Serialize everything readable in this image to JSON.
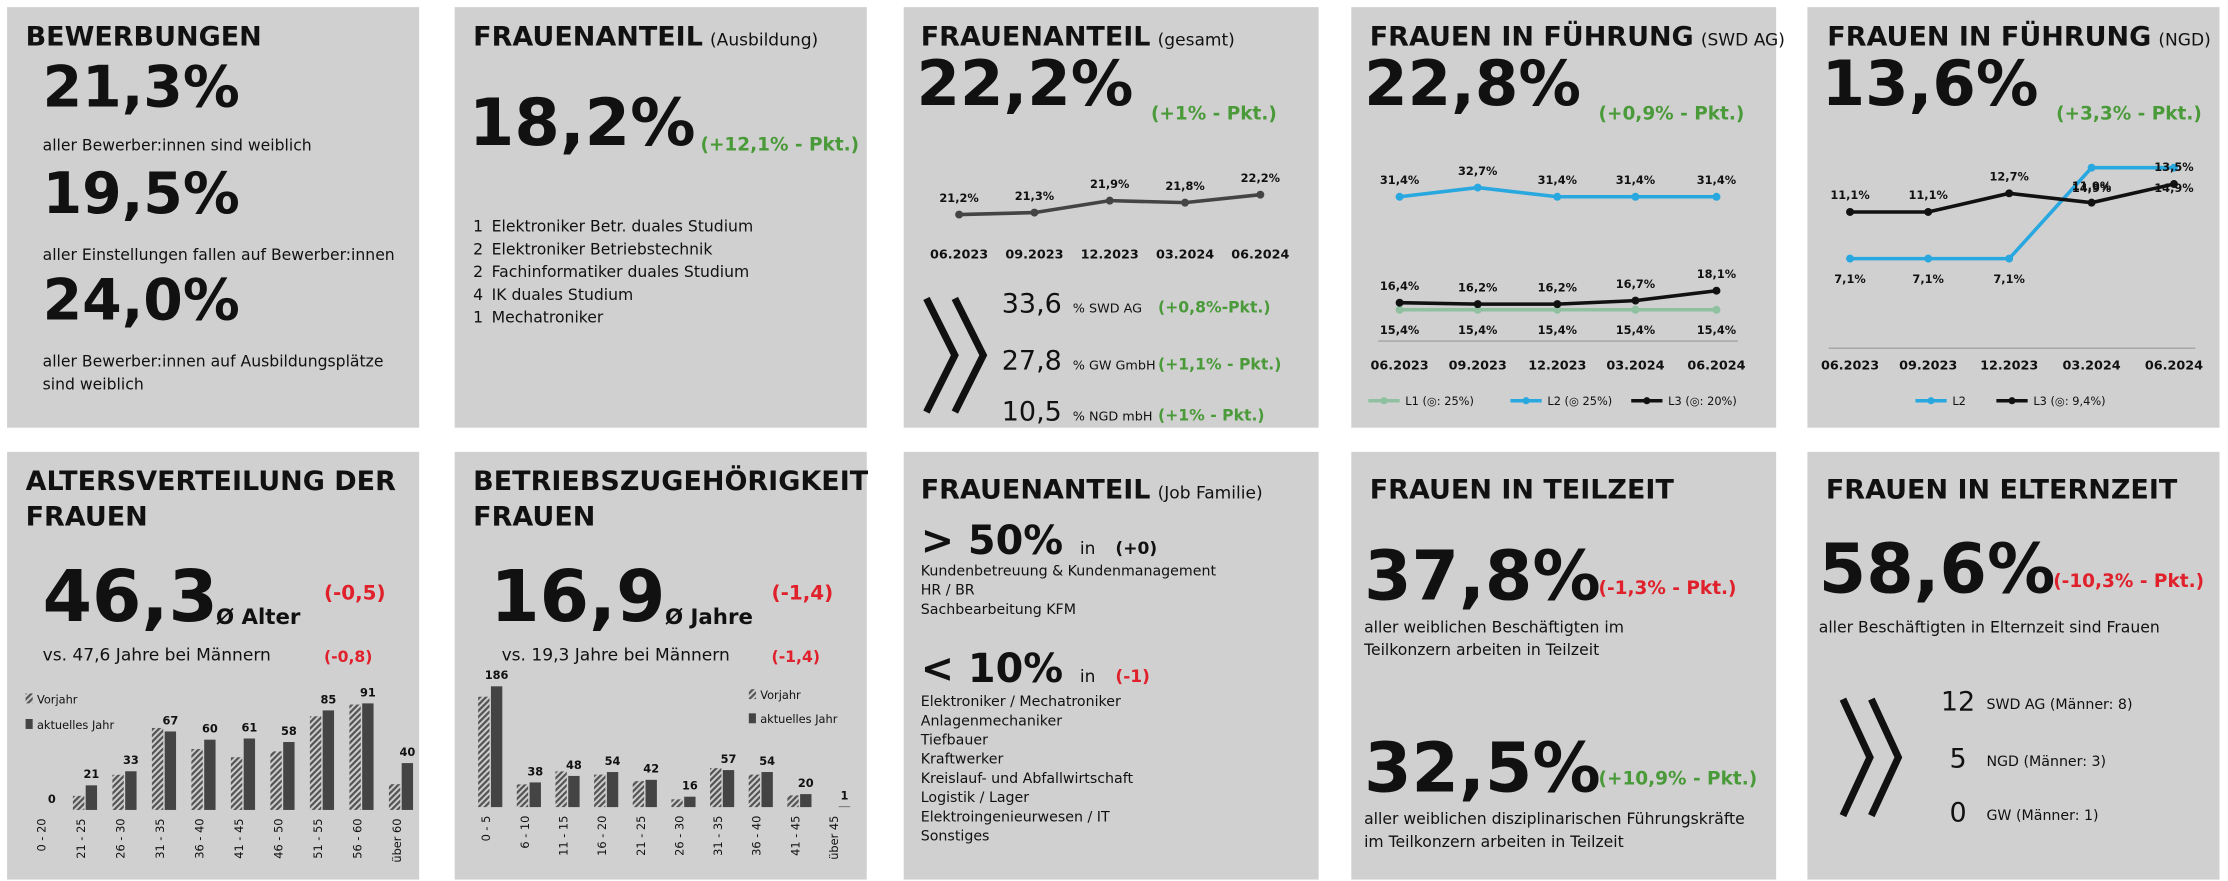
{
  "tiles": [
    {
      "title": "BEWERBUNGEN",
      "items": [
        {
          "value": "21,3%",
          "lines": [
            "aller Bewerber:innen sind weiblich"
          ]
        },
        {
          "value": "19,5%",
          "lines": [
            "aller Einstellungen fallen auf Bewerber:innen"
          ]
        },
        {
          "value": "24,0%",
          "lines": [
            "aller Bewerber:innen auf Ausbildungsplätze",
            "sind weiblich"
          ]
        }
      ]
    },
    {
      "title": "FRAUENANTEIL",
      "subtitle": "(Ausbildung)",
      "value": "18,2%",
      "change": "(+12,1% - Pkt.)",
      "list": [
        {
          "count": 1,
          "label": "Elektroniker Betr. duales Studium"
        },
        {
          "count": 2,
          "label": "Elektroniker Betriebstechnik"
        },
        {
          "count": 2,
          "label": "Fachinformatiker duales Studium"
        },
        {
          "count": 4,
          "label": "IK duales Studium"
        },
        {
          "count": 1,
          "label": "Mechatroniker"
        }
      ]
    },
    {
      "title": "FRAUENANTEIL",
      "subtitle": "(gesamt)",
      "value": "22,2%",
      "change": "(+1% - Pkt.)",
      "list": [
        {
          "value": "33,6",
          "unit": "% SWD AG",
          "change": "(+0,8%-Pkt.)"
        },
        {
          "value": "27,8",
          "unit": "% GW GmbH",
          "change": "(+1,1% - Pkt.)"
        },
        {
          "value": "10,5",
          "unit": "% NGD mbH",
          "change": "(+1% - Pkt.)"
        }
      ]
    },
    {
      "title": "FRAUEN IN FÜHRUNG",
      "subtitle": "(SWD AG)",
      "value": "22,8%",
      "change": "(+0,9% - Pkt.)"
    },
    {
      "title": "FRAUEN IN FÜHRUNG",
      "subtitle": "(NGD)",
      "value": "13,6%",
      "change": "(+3,3% - Pkt.)"
    },
    {
      "title": [
        "ALTERSVERTEILUNG DER",
        "FRAUEN"
      ],
      "value": "46,3",
      "unit": "Ø Alter",
      "change": "(-0,5)",
      "note": "vs. 47,6 Jahre bei Männern",
      "note_change": "(-0,8)"
    },
    {
      "title": [
        "BETRIEBSZUGEHÖRIGKEIT",
        "FRAUEN"
      ],
      "value": "16,9",
      "unit": "Ø Jahre",
      "change": "(-1,4)",
      "note": "vs. 19,3 Jahre bei Männern",
      "note_change": "(-1,4)"
    },
    {
      "title": "FRAUENANTEIL",
      "subtitle": "(Job Familie)",
      "groups": [
        {
          "head": "> 50%",
          "in": "in",
          "change": "(+0)",
          "items": [
            "Kundenbetreuung & Kundenmanagement",
            "HR / BR",
            "Sachbearbeitung KFM"
          ]
        },
        {
          "head": "< 10%",
          "in": "in",
          "change": "(-1)",
          "items": [
            "Elektroniker / Mechatroniker",
            "Anlagenmechaniker",
            "Tiefbauer",
            "Kraftwerker",
            "Kreislauf- und Abfallwirtschaft",
            "Logistik / Lager",
            "Elektroingenieurwesen / IT",
            "Sonstiges"
          ]
        }
      ]
    },
    {
      "title": "FRAUEN IN TEILZEIT",
      "items": [
        {
          "value": "37,8%",
          "change": "(-1,3% - Pkt.)",
          "lines": [
            "aller weiblichen Beschäftigten im",
            "Teilkonzern arbeiten in Teilzeit"
          ]
        },
        {
          "value": "32,5%",
          "change": "(+10,9% - Pkt.)",
          "lines": [
            "aller weiblichen disziplinarischen Führungskräfte",
            "im Teilkonzern arbeiten in Teilzeit"
          ]
        }
      ]
    },
    {
      "title": "FRAUEN IN ELTERNZEIT",
      "value": "58,6%",
      "change": "(-10,3% - Pkt.)",
      "text": "aller Beschäftigten in Elternzeit sind Frauen",
      "list": [
        {
          "count": 12,
          "label": "SWD AG (Männer: 8)"
        },
        {
          "count": 5,
          "label": "NGD (Männer: 3)"
        },
        {
          "count": 0,
          "label": "GW (Männer: 1)"
        }
      ]
    }
  ],
  "chart_data": [
    {
      "type": "line",
      "categories": [
        "06.2023",
        "09.2023",
        "12.2023",
        "03.2024",
        "06.2024"
      ],
      "color": "#444444",
      "values": [
        21.2,
        21.3,
        21.9,
        21.8,
        22.2
      ],
      "value_labels": [
        "21,2%",
        "21,3%",
        "21,9%",
        "21,8%",
        "22,2%"
      ]
    },
    {
      "type": "line",
      "categories": [
        "06.2023",
        "09.2023",
        "12.2023",
        "03.2024",
        "06.2024"
      ],
      "series": [
        {
          "name": "L1 (◎: 25%)",
          "color": "#8fc0a0",
          "label_position": "below",
          "values": [
            15.4,
            15.4,
            15.4,
            15.4,
            15.4
          ],
          "value_labels": [
            "15,4%",
            "15,4%",
            "15,4%",
            "15,4%",
            "15,4%"
          ]
        },
        {
          "name": "L2 (◎ 25%)",
          "color": "#29a8e0",
          "label_position": "above",
          "values": [
            31.4,
            32.7,
            31.4,
            31.4,
            31.4
          ],
          "value_labels": [
            "31,4%",
            "32,7%",
            "31,4%",
            "31,4%",
            "31,4%"
          ]
        },
        {
          "name": "L3 (◎: 20%)",
          "color": "#111111",
          "label_position": "above",
          "values": [
            16.4,
            16.2,
            16.2,
            16.7,
            18.1
          ],
          "value_labels": [
            "16,4%",
            "16,2%",
            "16,2%",
            "16,7%",
            "18,1%"
          ]
        }
      ]
    },
    {
      "type": "line",
      "categories": [
        "06.2023",
        "09.2023",
        "12.2023",
        "03.2024",
        "06.2024"
      ],
      "series": [
        {
          "name": "L2",
          "color": "#29a8e0",
          "label_position": "below",
          "values": [
            7.1,
            7.1,
            7.1,
            14.9,
            14.9
          ],
          "value_labels": [
            "7,1%",
            "7,1%",
            "7,1%",
            "14,9%",
            "14,9%"
          ]
        },
        {
          "name": "L3 (◎: 9,4%)",
          "color": "#111111",
          "label_position": "above",
          "values": [
            11.1,
            11.1,
            12.7,
            11.9,
            13.5
          ],
          "value_labels": [
            "11,1%",
            "11,1%",
            "12,7%",
            "11,9%",
            "13,5%"
          ]
        }
      ]
    },
    {
      "type": "bar",
      "categories": [
        "0 - 20",
        "21 - 25",
        "26 - 30",
        "31 - 35",
        "36 - 40",
        "41 - 45",
        "46 - 50",
        "51 - 55",
        "56 - 60",
        "über 60"
      ],
      "series": [
        {
          "name": "Vorjahr",
          "color": "#555555",
          "pattern": "hatched",
          "values": [
            0,
            12,
            30,
            70,
            52,
            45,
            50,
            80,
            90,
            22
          ]
        },
        {
          "name": "aktuelles Jahr",
          "color": "#444444",
          "show_labels": true,
          "values": [
            0,
            21,
            33,
            67,
            60,
            61,
            58,
            85,
            91,
            40
          ]
        }
      ]
    },
    {
      "type": "bar",
      "categories": [
        "0 - 5",
        "6 - 10",
        "11 - 15",
        "16 - 20",
        "21 - 25",
        "26 - 30",
        "31 - 35",
        "36 - 40",
        "41 - 45",
        "über 45"
      ],
      "series": [
        {
          "name": "Vorjahr",
          "color": "#555555",
          "pattern": "hatched",
          "values": [
            170,
            35,
            55,
            50,
            40,
            12,
            60,
            50,
            18,
            0
          ]
        },
        {
          "name": "aktuelles Jahr",
          "color": "#444444",
          "show_labels": true,
          "values": [
            186,
            38,
            48,
            54,
            42,
            16,
            57,
            54,
            20,
            1
          ]
        }
      ]
    }
  ]
}
